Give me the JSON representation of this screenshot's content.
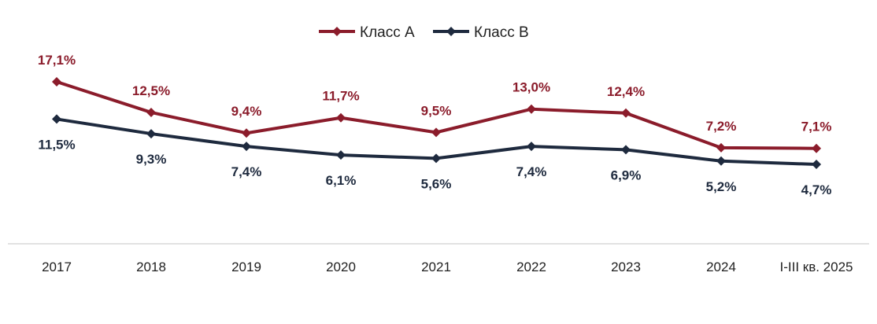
{
  "chart_data": {
    "type": "line",
    "categories": [
      "2017",
      "2018",
      "2019",
      "2020",
      "2021",
      "2022",
      "2023",
      "2024",
      "I-III кв. 2025"
    ],
    "series": [
      {
        "name": "Класс А",
        "color": "#8b1c2b",
        "values": [
          17.1,
          12.5,
          9.4,
          11.7,
          9.5,
          13.0,
          12.4,
          7.2,
          7.1
        ],
        "labels": [
          "17,1%",
          "12,5%",
          "9,4%",
          "11,7%",
          "9,5%",
          "13,0%",
          "12,4%",
          "7,2%",
          "7,1%"
        ]
      },
      {
        "name": "Класс В",
        "color": "#1e2a3e",
        "values": [
          11.5,
          9.3,
          7.4,
          6.1,
          5.6,
          7.4,
          6.9,
          5.2,
          4.7
        ],
        "labels": [
          "11,5%",
          "9,3%",
          "7,4%",
          "6,1%",
          "5,6%",
          "7,4%",
          "6,9%",
          "5,2%",
          "4,7%"
        ]
      }
    ],
    "data_label_suffix": "%",
    "legend_position": "top-center",
    "grid": false,
    "marker": "diamond"
  }
}
